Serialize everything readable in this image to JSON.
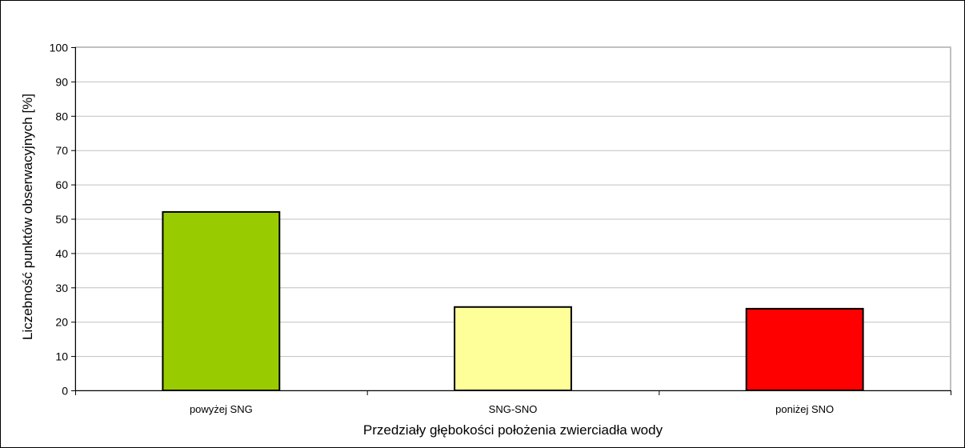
{
  "chart_data": {
    "type": "bar",
    "categories": [
      "powyżej SNG",
      "SNG-SNO",
      "poniżej SNO"
    ],
    "values": [
      52,
      24.3,
      23.8
    ],
    "colors": [
      "#99cc00",
      "#ffff99",
      "#ff0000"
    ],
    "xlabel": "Przedziały głębokości położenia zwierciadła wody",
    "ylabel": "Liczebność punktów obserwacyjnych [%]",
    "ylim": [
      0,
      100
    ],
    "yticks": [
      0,
      10,
      20,
      30,
      40,
      50,
      60,
      70,
      80,
      90,
      100
    ],
    "grid": true,
    "legend": "none"
  }
}
